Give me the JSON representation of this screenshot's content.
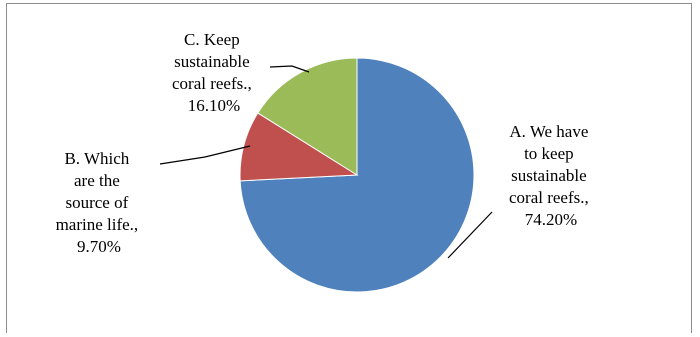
{
  "chart_data": {
    "type": "pie",
    "title": "",
    "colors": [
      "#4f81bd",
      "#c0504d",
      "#9bbb59"
    ],
    "slices": [
      {
        "label_lines": [
          "A. We have",
          "to keep",
          "sustainable",
          "coral reefs.,",
          "74.20%"
        ],
        "category": "A. We have to keep sustainable coral reefs.",
        "value": 74.2,
        "value_label": "74.20%",
        "color": "#4f81bd"
      },
      {
        "label_lines": [
          "B. Which",
          "are the",
          "source of",
          "marine life.,",
          "9.70%"
        ],
        "category": "B. Which are the source of marine life.",
        "value": 9.7,
        "value_label": "9.70%",
        "color": "#c0504d"
      },
      {
        "label_lines": [
          "C. Keep",
          "sustainable",
          "coral reefs.,",
          "16.10%"
        ],
        "category": "C. Keep sustainable coral reefs.",
        "value": 16.1,
        "value_label": "16.10%",
        "color": "#9bbb59"
      }
    ],
    "start_angle": "12 o'clock",
    "direction": "clockwise",
    "legend": "none",
    "data_labels": "outside with leader lines"
  }
}
